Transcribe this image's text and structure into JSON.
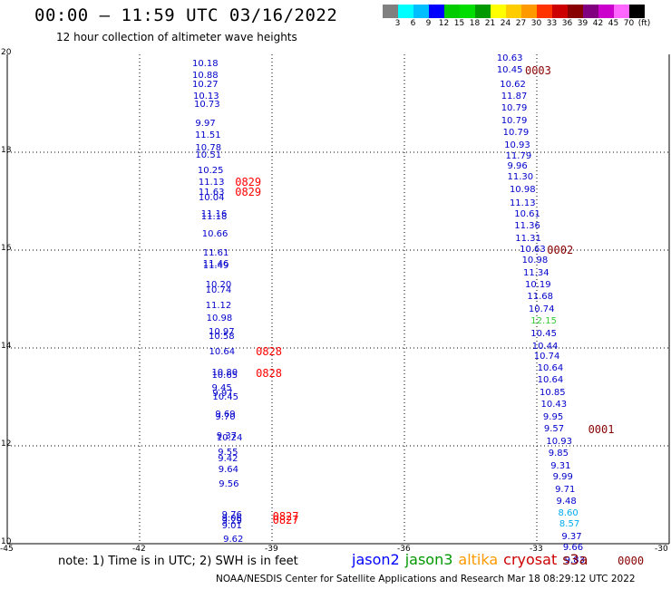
{
  "title": "00:00 – 11:59 UTC 03/16/2022",
  "subtitle": "12 hour collection of altimeter wave heights",
  "colorbar": {
    "colors": [
      "#808080",
      "#00ffff",
      "#00bfff",
      "#0000ff",
      "#00cc00",
      "#00dd00",
      "#009900",
      "#ffff00",
      "#ffcc00",
      "#ff9900",
      "#ff3300",
      "#cc0000",
      "#880000",
      "#800080",
      "#cc00cc",
      "#ff66ff",
      "#000000"
    ],
    "labels": [
      "3",
      "6",
      "9",
      "12",
      "15",
      "18",
      "21",
      "24",
      "27",
      "30",
      "33",
      "36",
      "39",
      "42",
      "45",
      "70",
      "(ft)"
    ]
  },
  "map": {
    "lon_range": [
      -45,
      -30
    ],
    "lat_range": [
      10,
      20
    ],
    "x_ticks": [
      "-45",
      "-42",
      "-39",
      "-36",
      "-33",
      "-30"
    ],
    "y_ticks": [
      "10",
      "12",
      "14",
      "16",
      "18",
      "20"
    ]
  },
  "tracks": [
    {
      "points": [
        {
          "lon": -40.52,
          "lat": 19.8,
          "label": "10.18",
          "color": "#0000cc"
        },
        {
          "lon": -40.52,
          "lat": 19.55,
          "label": "10.88",
          "color": "#0000cc"
        },
        {
          "lon": -40.52,
          "lat": 19.37,
          "label": "10.27",
          "color": "#0000cc"
        },
        {
          "lon": -40.5,
          "lat": 19.13,
          "label": "10.13",
          "color": "#0000cc"
        },
        {
          "lon": -40.48,
          "lat": 18.97,
          "label": "10.73",
          "color": "#0000cc"
        },
        {
          "lon": -40.45,
          "lat": 18.57,
          "label": "9.97",
          "color": "#0000cc"
        },
        {
          "lon": -40.46,
          "lat": 18.33,
          "label": "11.51",
          "color": "#0000cc"
        },
        {
          "lon": -40.45,
          "lat": 18.08,
          "label": "10.78",
          "color": "#0000cc"
        },
        {
          "lon": -40.45,
          "lat": 17.93,
          "label": "10.51",
          "color": "#0000cc"
        },
        {
          "lon": -40.4,
          "lat": 17.62,
          "label": "10.25",
          "color": "#0000cc"
        },
        {
          "lon": -40.38,
          "lat": 17.37,
          "label": "11.13",
          "color": "#0000cc"
        },
        {
          "lon": -40.38,
          "lat": 17.17,
          "label": "11.63",
          "color": "#0000cc"
        },
        {
          "lon": -40.38,
          "lat": 17.05,
          "label": "10.04",
          "color": "#0000cc"
        },
        {
          "lon": -40.32,
          "lat": 16.72,
          "label": "11.16",
          "color": "#0000cc"
        },
        {
          "lon": -40.32,
          "lat": 16.66,
          "label": "11.18",
          "color": "#0000cc"
        },
        {
          "lon": -40.3,
          "lat": 16.32,
          "label": "10.66",
          "color": "#0000cc"
        },
        {
          "lon": -40.28,
          "lat": 15.93,
          "label": "11.61",
          "color": "#0000cc"
        },
        {
          "lon": -40.28,
          "lat": 15.7,
          "label": "11.46",
          "color": "#0000cc"
        },
        {
          "lon": -40.28,
          "lat": 15.66,
          "label": "11.49",
          "color": "#0000cc"
        },
        {
          "lon": -40.22,
          "lat": 15.27,
          "label": "10.20",
          "color": "#0000cc"
        },
        {
          "lon": -40.22,
          "lat": 15.16,
          "label": "10.74",
          "color": "#0000cc"
        },
        {
          "lon": -40.22,
          "lat": 14.85,
          "label": "11.12",
          "color": "#0000cc"
        },
        {
          "lon": -40.2,
          "lat": 14.6,
          "label": "10.98",
          "color": "#0000cc"
        },
        {
          "lon": -40.15,
          "lat": 14.32,
          "label": "10.97",
          "color": "#0000cc"
        },
        {
          "lon": -40.15,
          "lat": 14.22,
          "label": "10.58",
          "color": "#0000cc"
        },
        {
          "lon": -40.14,
          "lat": 13.9,
          "label": "10.64",
          "color": "#0000cc"
        },
        {
          "lon": -40.08,
          "lat": 13.48,
          "label": "10.80",
          "color": "#0000cc"
        },
        {
          "lon": -40.08,
          "lat": 13.43,
          "label": "10.65",
          "color": "#0000cc"
        },
        {
          "lon": -40.08,
          "lat": 13.17,
          "label": "9.45",
          "color": "#0000cc"
        },
        {
          "lon": -40.06,
          "lat": 13.06,
          "label": "9.97",
          "color": "#0000cc"
        },
        {
          "lon": -40.06,
          "lat": 12.98,
          "label": "10.45",
          "color": "#0000cc"
        },
        {
          "lon": -40.0,
          "lat": 12.63,
          "label": "9.69",
          "color": "#0000cc"
        },
        {
          "lon": -40.0,
          "lat": 12.58,
          "label": "9.70",
          "color": "#0000cc"
        },
        {
          "lon": -39.97,
          "lat": 12.18,
          "label": "9.37",
          "color": "#0000cc"
        },
        {
          "lon": -39.97,
          "lat": 12.14,
          "label": "10.24",
          "color": "#0000cc"
        },
        {
          "lon": -39.94,
          "lat": 11.85,
          "label": "9.55",
          "color": "#0000cc"
        },
        {
          "lon": -39.94,
          "lat": 11.73,
          "label": "9.42",
          "color": "#0000cc"
        },
        {
          "lon": -39.93,
          "lat": 11.5,
          "label": "9.64",
          "color": "#0000cc"
        },
        {
          "lon": -39.92,
          "lat": 11.2,
          "label": "9.56",
          "color": "#0000cc"
        },
        {
          "lon": -39.85,
          "lat": 10.57,
          "label": "9.76",
          "color": "#0000cc"
        },
        {
          "lon": -39.85,
          "lat": 10.5,
          "label": "9.06",
          "color": "#0000cc"
        },
        {
          "lon": -39.85,
          "lat": 10.45,
          "label": "9.29",
          "color": "#0000cc"
        },
        {
          "lon": -39.85,
          "lat": 10.35,
          "label": "9.01",
          "color": "#0000cc"
        },
        {
          "lon": -39.82,
          "lat": 10.08,
          "label": "9.62",
          "color": "#0000cc"
        }
      ],
      "pass_labels": [
        {
          "lon": -39.55,
          "lat": 17.38,
          "label": "0829",
          "color": "#ff0000"
        },
        {
          "lon": -39.55,
          "lat": 17.18,
          "label": "0829",
          "color": "#ff0000"
        },
        {
          "lon": -39.08,
          "lat": 13.93,
          "label": "0828",
          "color": "#ff0000"
        },
        {
          "lon": -39.08,
          "lat": 13.48,
          "label": "0828",
          "color": "#ff0000"
        },
        {
          "lon": -38.7,
          "lat": 10.55,
          "label": "0827",
          "color": "#ff0000"
        },
        {
          "lon": -38.7,
          "lat": 10.48,
          "label": "0827",
          "color": "#ff0000"
        }
      ]
    },
    {
      "points": [
        {
          "lon": -33.62,
          "lat": 19.9,
          "label": "10.63",
          "color": "#0000cc"
        },
        {
          "lon": -33.62,
          "lat": 19.67,
          "label": "10.45",
          "color": "#0000cc"
        },
        {
          "lon": -33.55,
          "lat": 19.37,
          "label": "10.62",
          "color": "#0000cc"
        },
        {
          "lon": -33.52,
          "lat": 19.13,
          "label": "11.87",
          "color": "#0000cc"
        },
        {
          "lon": -33.52,
          "lat": 18.88,
          "label": "10.79",
          "color": "#0000cc"
        },
        {
          "lon": -33.52,
          "lat": 18.63,
          "label": "10.79",
          "color": "#0000cc"
        },
        {
          "lon": -33.48,
          "lat": 18.38,
          "label": "10.79",
          "color": "#0000cc"
        },
        {
          "lon": -33.45,
          "lat": 18.13,
          "label": "10.93",
          "color": "#0000cc"
        },
        {
          "lon": -33.42,
          "lat": 17.9,
          "label": "11.79",
          "color": "#0000cc"
        },
        {
          "lon": -33.38,
          "lat": 17.7,
          "label": "9.96",
          "color": "#0000cc"
        },
        {
          "lon": -33.38,
          "lat": 17.48,
          "label": "11.30",
          "color": "#0000cc"
        },
        {
          "lon": -33.33,
          "lat": 17.22,
          "label": "10.98",
          "color": "#0000cc"
        },
        {
          "lon": -33.33,
          "lat": 16.95,
          "label": "11.13",
          "color": "#0000cc"
        },
        {
          "lon": -33.22,
          "lat": 16.72,
          "label": "10.61",
          "color": "#0000cc"
        },
        {
          "lon": -33.22,
          "lat": 16.48,
          "label": "11.36",
          "color": "#0000cc"
        },
        {
          "lon": -33.2,
          "lat": 16.23,
          "label": "11.31",
          "color": "#0000cc"
        },
        {
          "lon": -33.1,
          "lat": 16.0,
          "label": "10.63",
          "color": "#0000cc"
        },
        {
          "lon": -33.05,
          "lat": 15.78,
          "label": "10.98",
          "color": "#0000cc"
        },
        {
          "lon": -33.02,
          "lat": 15.52,
          "label": "11.34",
          "color": "#0000cc"
        },
        {
          "lon": -32.98,
          "lat": 15.28,
          "label": "10.19",
          "color": "#0000cc"
        },
        {
          "lon": -32.93,
          "lat": 15.03,
          "label": "11.68",
          "color": "#0000cc"
        },
        {
          "lon": -32.9,
          "lat": 14.78,
          "label": "10.74",
          "color": "#0000cc"
        },
        {
          "lon": -32.85,
          "lat": 14.53,
          "label": "12.15",
          "color": "#33cc33"
        },
        {
          "lon": -32.85,
          "lat": 14.28,
          "label": "10.45",
          "color": "#0000cc"
        },
        {
          "lon": -32.82,
          "lat": 14.02,
          "label": "10.44",
          "color": "#0000cc"
        },
        {
          "lon": -32.78,
          "lat": 13.82,
          "label": "10.74",
          "color": "#0000cc"
        },
        {
          "lon": -32.7,
          "lat": 13.57,
          "label": "10.64",
          "color": "#0000cc"
        },
        {
          "lon": -32.7,
          "lat": 13.33,
          "label": "10.64",
          "color": "#0000cc"
        },
        {
          "lon": -32.65,
          "lat": 13.08,
          "label": "10.85",
          "color": "#0000cc"
        },
        {
          "lon": -32.62,
          "lat": 12.83,
          "label": "10.43",
          "color": "#0000cc"
        },
        {
          "lon": -32.57,
          "lat": 12.58,
          "label": "9.95",
          "color": "#0000cc"
        },
        {
          "lon": -32.55,
          "lat": 12.33,
          "label": "9.57",
          "color": "#0000cc"
        },
        {
          "lon": -32.5,
          "lat": 12.08,
          "label": "10.93",
          "color": "#0000cc"
        },
        {
          "lon": -32.45,
          "lat": 11.83,
          "label": "9.85",
          "color": "#0000cc"
        },
        {
          "lon": -32.4,
          "lat": 11.58,
          "label": "9.31",
          "color": "#0000cc"
        },
        {
          "lon": -32.35,
          "lat": 11.35,
          "label": "9.99",
          "color": "#0000cc"
        },
        {
          "lon": -32.3,
          "lat": 11.1,
          "label": "9.71",
          "color": "#0000cc"
        },
        {
          "lon": -32.27,
          "lat": 10.85,
          "label": "9.48",
          "color": "#0000cc"
        },
        {
          "lon": -32.23,
          "lat": 10.62,
          "label": "8.60",
          "color": "#00aaee"
        },
        {
          "lon": -32.2,
          "lat": 10.38,
          "label": "8.57",
          "color": "#00aaee"
        },
        {
          "lon": -32.15,
          "lat": 10.13,
          "label": "9.37",
          "color": "#0000cc"
        },
        {
          "lon": -32.12,
          "lat": 9.9,
          "label": "9.66",
          "color": "#0000cc"
        },
        {
          "lon": -32.08,
          "lat": 9.65,
          "label": "9.83",
          "color": "#0000cc"
        }
      ],
      "pass_labels": [
        {
          "lon": -32.98,
          "lat": 19.67,
          "label": "0003",
          "color": "#880000"
        },
        {
          "lon": -32.48,
          "lat": 16.0,
          "label": "0002",
          "color": "#880000"
        },
        {
          "lon": -31.55,
          "lat": 12.33,
          "label": "0001",
          "color": "#880000"
        },
        {
          "lon": -30.88,
          "lat": 9.65,
          "label": "0000",
          "color": "#880000"
        }
      ]
    }
  ],
  "note": "note: 1) Time is in UTC; 2) SWH is in feet",
  "legend": [
    {
      "label": "jason2",
      "color": "#0000ff"
    },
    {
      "label": "jason3",
      "color": "#009900"
    },
    {
      "label": "altika",
      "color": "#ff9900"
    },
    {
      "label": "cryosat",
      "color": "#cc0000"
    },
    {
      "label": "s3a",
      "color": "#880000"
    }
  ],
  "credit": "NOAA/NESDIS Center for Satellite Applications and Research    Mar 18 08:29:12 UTC 2022"
}
